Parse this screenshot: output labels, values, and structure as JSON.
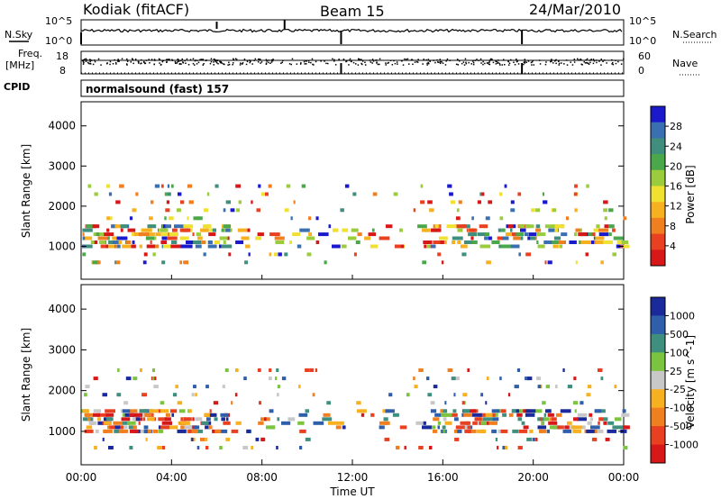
{
  "header": {
    "station": "Kodiak (fitACF)",
    "beam": "Beam 15",
    "date": "24/Mar/2010"
  },
  "noise_panel": {
    "left_label": "N.Sky",
    "right_label": "N.Search",
    "left_ticks": [
      "10^5",
      "10^0"
    ],
    "right_ticks": [
      "10^5",
      "10^0"
    ]
  },
  "freq_panel": {
    "left_label_top": "Freq.",
    "left_label_bottom": "[MHz]",
    "right_label": "Nave",
    "left_ticks": [
      "18",
      "8"
    ],
    "right_ticks": [
      "60",
      "0"
    ]
  },
  "cpid": {
    "label": "CPID",
    "mode": "normalsound (fast) 157"
  },
  "x_axis": {
    "label": "Time UT",
    "ticks": [
      "00:00",
      "04:00",
      "08:00",
      "12:00",
      "16:00",
      "20:00",
      "00:00"
    ]
  },
  "chart_data": [
    {
      "type": "heatmap",
      "name": "power",
      "ylabel": "Slant Range [km]",
      "yticks": [
        1000,
        2000,
        3000,
        4000
      ],
      "ylim": [
        180,
        4600
      ],
      "xlim_hours": [
        0,
        24
      ],
      "colorbar": {
        "label": "Power [dB]",
        "ticks": [
          "28",
          "24",
          "20",
          "16",
          "12",
          "8",
          "4"
        ],
        "range": [
          0,
          30
        ],
        "colors": [
          "#1a1acc",
          "#3a6fb0",
          "#3f8e7e",
          "#4aa84a",
          "#9bcc3c",
          "#f0e030",
          "#f7b020",
          "#f07f20",
          "#e84020",
          "#d81818"
        ]
      },
      "scatter_bands_km": [
        600,
        800,
        1000,
        1100,
        1200,
        1300,
        1400,
        1500,
        1700,
        1900,
        2100,
        2300,
        2500
      ]
    },
    {
      "type": "heatmap",
      "name": "velocity",
      "ylabel": "Slant Range [km]",
      "yticks": [
        1000,
        2000,
        3000,
        4000
      ],
      "ylim": [
        180,
        4600
      ],
      "xlim_hours": [
        0,
        24
      ],
      "colorbar": {
        "label": "Velocity [m s^-1]",
        "ticks": [
          "1000",
          "500",
          "100",
          "25",
          "-25",
          "-100",
          "-500",
          "-1000"
        ],
        "colors": [
          "#1a2a9a",
          "#2f5faa",
          "#3f8f7f",
          "#7bc440",
          "#c8c8c8",
          "#f7b020",
          "#f07f20",
          "#e84020",
          "#d81818"
        ]
      },
      "scatter_bands_km": [
        600,
        800,
        1000,
        1100,
        1200,
        1300,
        1400,
        1500,
        1700,
        1900,
        2100,
        2300,
        2500
      ]
    }
  ]
}
